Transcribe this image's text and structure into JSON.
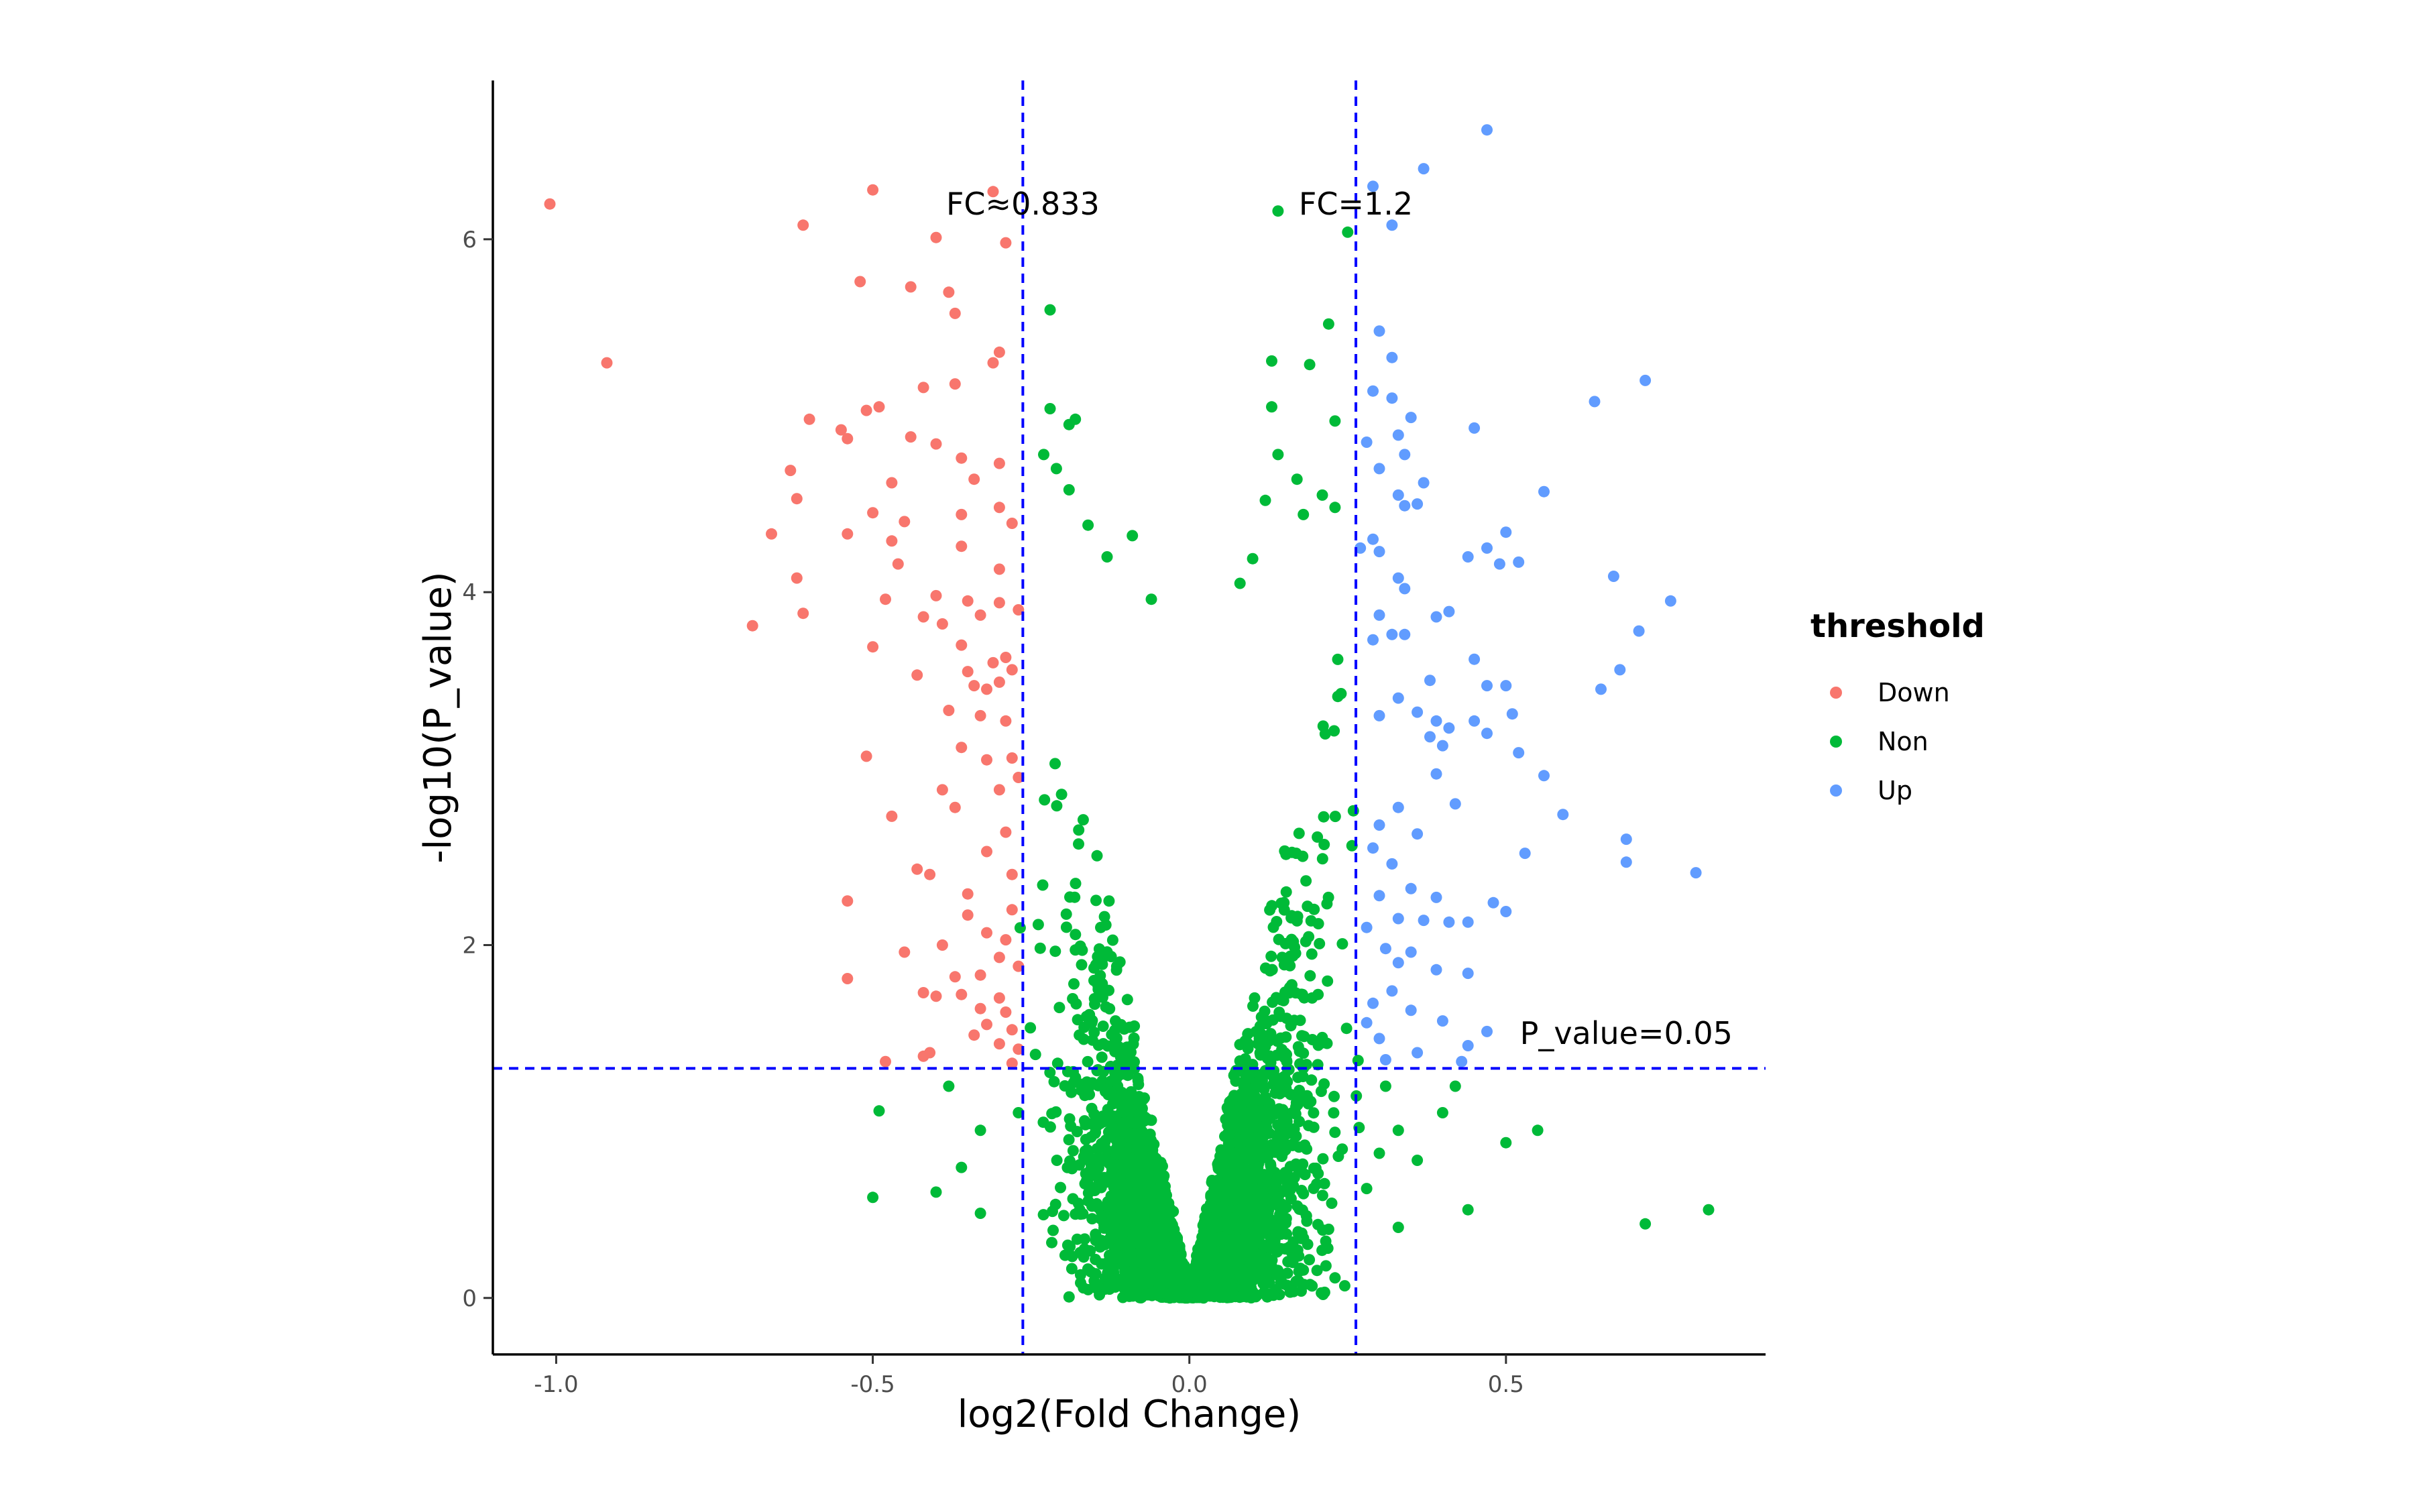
{
  "chart_data": {
    "type": "scatter",
    "title": "",
    "xlabel": "log2(Fold Change)",
    "ylabel": "-log10(P_value)",
    "xlim": [
      -1.1,
      0.91
    ],
    "ylim": [
      -0.32,
      6.9
    ],
    "x_ticks": [
      {
        "value": -1.0,
        "label": "-1.0"
      },
      {
        "value": -0.5,
        "label": "-0.5"
      },
      {
        "value": 0.0,
        "label": "0.0"
      },
      {
        "value": 0.5,
        "label": "0.5"
      }
    ],
    "y_ticks": [
      {
        "value": 0,
        "label": "0"
      },
      {
        "value": 2,
        "label": "2"
      },
      {
        "value": 4,
        "label": "4"
      },
      {
        "value": 6,
        "label": "6"
      }
    ],
    "grid": false,
    "thresholds": {
      "vlines": [
        -0.263,
        0.263
      ],
      "hline": 1.301
    },
    "annotations": [
      {
        "text": "FC≈0.833",
        "x": -0.263,
        "y": 6.2
      },
      {
        "text": "FC=1.2",
        "x": 0.263,
        "y": 6.2
      },
      {
        "text": "P_value=0.05",
        "x": 0.69,
        "y": 1.5
      }
    ],
    "legend": {
      "title": "threshold",
      "position": "right",
      "entries": [
        {
          "label": "Down",
          "color": "#F8766D"
        },
        {
          "label": "Non",
          "color": "#00BA38"
        },
        {
          "label": "Up",
          "color": "#619CFF"
        }
      ]
    },
    "series": [
      {
        "name": "Down",
        "color": "#F8766D",
        "points": [
          [
            -1.01,
            6.2
          ],
          [
            -0.92,
            5.3
          ],
          [
            -0.5,
            6.28
          ],
          [
            -0.31,
            6.27
          ],
          [
            -0.61,
            6.08
          ],
          [
            -0.4,
            6.01
          ],
          [
            -0.29,
            5.98
          ],
          [
            -0.52,
            5.76
          ],
          [
            -0.44,
            5.73
          ],
          [
            -0.38,
            5.7
          ],
          [
            -0.37,
            5.58
          ],
          [
            -0.3,
            5.36
          ],
          [
            -0.31,
            5.3
          ],
          [
            -0.42,
            5.16
          ],
          [
            -0.37,
            5.18
          ],
          [
            -0.6,
            4.98
          ],
          [
            -0.51,
            5.03
          ],
          [
            -0.49,
            5.05
          ],
          [
            -0.55,
            4.92
          ],
          [
            -0.54,
            4.87
          ],
          [
            -0.44,
            4.88
          ],
          [
            -0.4,
            4.84
          ],
          [
            -0.36,
            4.76
          ],
          [
            -0.3,
            4.73
          ],
          [
            -0.63,
            4.69
          ],
          [
            -0.47,
            4.62
          ],
          [
            -0.62,
            4.53
          ],
          [
            -0.34,
            4.64
          ],
          [
            -0.3,
            4.48
          ],
          [
            -0.36,
            4.44
          ],
          [
            -0.45,
            4.4
          ],
          [
            -0.5,
            4.45
          ],
          [
            -0.66,
            4.33
          ],
          [
            -0.54,
            4.33
          ],
          [
            -0.47,
            4.29
          ],
          [
            -0.36,
            4.26
          ],
          [
            -0.28,
            4.39
          ],
          [
            -0.46,
            4.16
          ],
          [
            -0.3,
            4.13
          ],
          [
            -0.62,
            4.08
          ],
          [
            -0.48,
            3.96
          ],
          [
            -0.4,
            3.98
          ],
          [
            -0.35,
            3.95
          ],
          [
            -0.3,
            3.94
          ],
          [
            -0.61,
            3.88
          ],
          [
            -0.69,
            3.81
          ],
          [
            -0.42,
            3.86
          ],
          [
            -0.39,
            3.82
          ],
          [
            -0.33,
            3.87
          ],
          [
            -0.27,
            3.9
          ],
          [
            -0.5,
            3.69
          ],
          [
            -0.36,
            3.7
          ],
          [
            -0.31,
            3.6
          ],
          [
            -0.29,
            3.63
          ],
          [
            -0.43,
            3.53
          ],
          [
            -0.35,
            3.55
          ],
          [
            -0.34,
            3.47
          ],
          [
            -0.32,
            3.45
          ],
          [
            -0.3,
            3.49
          ],
          [
            -0.28,
            3.56
          ],
          [
            -0.38,
            3.33
          ],
          [
            -0.33,
            3.3
          ],
          [
            -0.29,
            3.27
          ],
          [
            -0.36,
            3.12
          ],
          [
            -0.32,
            3.05
          ],
          [
            -0.28,
            3.06
          ],
          [
            -0.51,
            3.07
          ],
          [
            -0.27,
            2.95
          ],
          [
            -0.3,
            2.88
          ],
          [
            -0.39,
            2.88
          ],
          [
            -0.37,
            2.78
          ],
          [
            -0.47,
            2.73
          ],
          [
            -0.29,
            2.64
          ],
          [
            -0.32,
            2.53
          ],
          [
            -0.43,
            2.43
          ],
          [
            -0.41,
            2.4
          ],
          [
            -0.28,
            2.4
          ],
          [
            -0.35,
            2.29
          ],
          [
            -0.28,
            2.2
          ],
          [
            -0.54,
            2.25
          ],
          [
            -0.35,
            2.17
          ],
          [
            -0.32,
            2.07
          ],
          [
            -0.39,
            2.0
          ],
          [
            -0.29,
            2.03
          ],
          [
            -0.45,
            1.96
          ],
          [
            -0.3,
            1.93
          ],
          [
            -0.27,
            1.88
          ],
          [
            -0.54,
            1.81
          ],
          [
            -0.33,
            1.83
          ],
          [
            -0.37,
            1.82
          ],
          [
            -0.42,
            1.73
          ],
          [
            -0.4,
            1.71
          ],
          [
            -0.3,
            1.7
          ],
          [
            -0.33,
            1.64
          ],
          [
            -0.29,
            1.62
          ],
          [
            -0.32,
            1.55
          ],
          [
            -0.28,
            1.52
          ],
          [
            -0.3,
            1.44
          ],
          [
            -0.42,
            1.37
          ],
          [
            -0.41,
            1.39
          ],
          [
            -0.48,
            1.34
          ],
          [
            -0.28,
            1.33
          ],
          [
            -0.27,
            1.41
          ],
          [
            -0.34,
            1.49
          ],
          [
            -0.36,
            1.72
          ]
        ]
      },
      {
        "name": "Non",
        "color": "#00BA38",
        "points": []
      },
      {
        "name": "Up",
        "color": "#619CFF",
        "points": [
          [
            0.47,
            6.62
          ],
          [
            0.37,
            6.4
          ],
          [
            0.29,
            6.3
          ],
          [
            0.32,
            6.08
          ],
          [
            0.3,
            5.48
          ],
          [
            0.32,
            5.33
          ],
          [
            0.72,
            5.2
          ],
          [
            0.64,
            5.08
          ],
          [
            0.29,
            5.14
          ],
          [
            0.32,
            5.1
          ],
          [
            0.35,
            4.99
          ],
          [
            0.45,
            4.93
          ],
          [
            0.28,
            4.85
          ],
          [
            0.33,
            4.89
          ],
          [
            0.34,
            4.78
          ],
          [
            0.3,
            4.7
          ],
          [
            0.37,
            4.62
          ],
          [
            0.33,
            4.55
          ],
          [
            0.56,
            4.57
          ],
          [
            0.34,
            4.49
          ],
          [
            0.36,
            4.5
          ],
          [
            0.29,
            4.3
          ],
          [
            0.27,
            4.25
          ],
          [
            0.3,
            4.23
          ],
          [
            0.5,
            4.34
          ],
          [
            0.47,
            4.25
          ],
          [
            0.44,
            4.2
          ],
          [
            0.52,
            4.17
          ],
          [
            0.49,
            4.16
          ],
          [
            0.33,
            4.08
          ],
          [
            0.34,
            4.02
          ],
          [
            0.67,
            4.09
          ],
          [
            0.76,
            3.95
          ],
          [
            0.3,
            3.87
          ],
          [
            0.41,
            3.89
          ],
          [
            0.39,
            3.86
          ],
          [
            0.32,
            3.76
          ],
          [
            0.34,
            3.76
          ],
          [
            0.71,
            3.78
          ],
          [
            0.68,
            3.56
          ],
          [
            0.29,
            3.73
          ],
          [
            0.45,
            3.62
          ],
          [
            0.38,
            3.5
          ],
          [
            0.33,
            3.4
          ],
          [
            0.47,
            3.47
          ],
          [
            0.5,
            3.47
          ],
          [
            0.65,
            3.45
          ],
          [
            0.3,
            3.3
          ],
          [
            0.36,
            3.32
          ],
          [
            0.39,
            3.27
          ],
          [
            0.41,
            3.23
          ],
          [
            0.45,
            3.27
          ],
          [
            0.51,
            3.31
          ],
          [
            0.47,
            3.2
          ],
          [
            0.52,
            3.09
          ],
          [
            0.4,
            3.13
          ],
          [
            0.38,
            3.18
          ],
          [
            0.56,
            2.96
          ],
          [
            0.39,
            2.97
          ],
          [
            0.42,
            2.8
          ],
          [
            0.33,
            2.78
          ],
          [
            0.3,
            2.68
          ],
          [
            0.36,
            2.63
          ],
          [
            0.59,
            2.74
          ],
          [
            0.53,
            2.52
          ],
          [
            0.69,
            2.6
          ],
          [
            0.69,
            2.47
          ],
          [
            0.8,
            2.41
          ],
          [
            0.29,
            2.55
          ],
          [
            0.32,
            2.46
          ],
          [
            0.35,
            2.32
          ],
          [
            0.3,
            2.28
          ],
          [
            0.39,
            2.27
          ],
          [
            0.48,
            2.24
          ],
          [
            0.5,
            2.19
          ],
          [
            0.33,
            2.15
          ],
          [
            0.37,
            2.14
          ],
          [
            0.41,
            2.13
          ],
          [
            0.44,
            2.13
          ],
          [
            0.28,
            2.1
          ],
          [
            0.31,
            1.98
          ],
          [
            0.35,
            1.96
          ],
          [
            0.33,
            1.9
          ],
          [
            0.39,
            1.86
          ],
          [
            0.44,
            1.84
          ],
          [
            0.32,
            1.74
          ],
          [
            0.29,
            1.67
          ],
          [
            0.35,
            1.63
          ],
          [
            0.4,
            1.57
          ],
          [
            0.47,
            1.51
          ],
          [
            0.28,
            1.56
          ],
          [
            0.3,
            1.47
          ],
          [
            0.44,
            1.43
          ],
          [
            0.36,
            1.39
          ],
          [
            0.31,
            1.35
          ],
          [
            0.43,
            1.34
          ]
        ]
      }
    ]
  }
}
